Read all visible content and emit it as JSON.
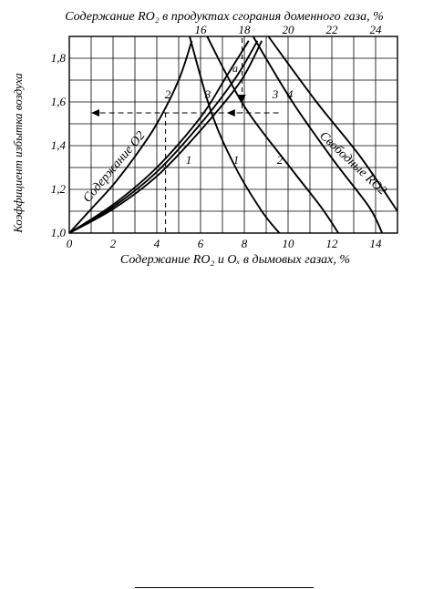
{
  "chart_data": {
    "type": "line",
    "title": "Содержание RO₂ в продуктах сгорания доменного газа, %",
    "xlabel": "Содержание RO₂ и Oₓ в дымовых газах, %",
    "ylabel": "Коэффициент избытка воздуха",
    "xlim": [
      0,
      15
    ],
    "ylim": [
      1.0,
      1.9
    ],
    "x_ticks": [
      0,
      2,
      4,
      6,
      8,
      10,
      12,
      14
    ],
    "y_ticks": [
      1.0,
      1.2,
      1.4,
      1.6,
      1.8
    ],
    "x_tick_labels": [
      "0",
      "2",
      "4",
      "6",
      "8",
      "10",
      "12",
      "14"
    ],
    "y_tick_labels": [
      "1,0",
      "1,2",
      "1,4",
      "1,6",
      "1,8"
    ],
    "top_ticks": [
      16,
      18,
      20,
      22,
      24
    ],
    "top_tick_labels": [
      "16",
      "18",
      "20",
      "22",
      "24"
    ],
    "grid": true,
    "series": [
      {
        "group": "O2",
        "label": "2",
        "x": [
          0,
          1,
          2,
          3,
          4,
          5,
          5.6
        ],
        "y": [
          1.0,
          1.11,
          1.22,
          1.35,
          1.5,
          1.7,
          1.88
        ]
      },
      {
        "group": "O2",
        "label": "3",
        "x": [
          0,
          2,
          4,
          6,
          7.2,
          8.2
        ],
        "y": [
          1.0,
          1.13,
          1.3,
          1.53,
          1.72,
          1.88
        ]
      },
      {
        "group": "O2",
        "label": "1",
        "x": [
          0,
          2,
          4,
          6,
          7.6,
          8.6
        ],
        "y": [
          1.0,
          1.12,
          1.28,
          1.5,
          1.71,
          1.88
        ]
      },
      {
        "group": "O2",
        "label": "4",
        "x": [
          0,
          2,
          4,
          6,
          7.8,
          8.8
        ],
        "y": [
          1.0,
          1.11,
          1.26,
          1.47,
          1.69,
          1.88
        ]
      },
      {
        "group": "RO2",
        "label": "1",
        "x": [
          5.5,
          6.5,
          7.6,
          8.8,
          9.6
        ],
        "y": [
          1.9,
          1.55,
          1.3,
          1.1,
          1.0
        ]
      },
      {
        "group": "RO2",
        "label": "2",
        "x": [
          6.3,
          8.0,
          10.1,
          11.5,
          12.3
        ],
        "y": [
          1.9,
          1.58,
          1.3,
          1.12,
          1.0
        ]
      },
      {
        "group": "RO2",
        "label": "3",
        "x": [
          8.4,
          10.2,
          12.1,
          13.7,
          14.3
        ],
        "y": [
          1.9,
          1.6,
          1.33,
          1.12,
          1.0
        ]
      },
      {
        "group": "RO2",
        "label": "4",
        "x": [
          9.1,
          11.3,
          13.3,
          15.0
        ],
        "y": [
          1.9,
          1.6,
          1.35,
          1.1
        ]
      }
    ],
    "example": {
      "alpha": 1.55,
      "o2": 4.4,
      "ro2": 8.8,
      "ro2_top": 17.9
    },
    "annotations": [
      "Содержание O2",
      "Свободные RO2",
      "a"
    ]
  }
}
